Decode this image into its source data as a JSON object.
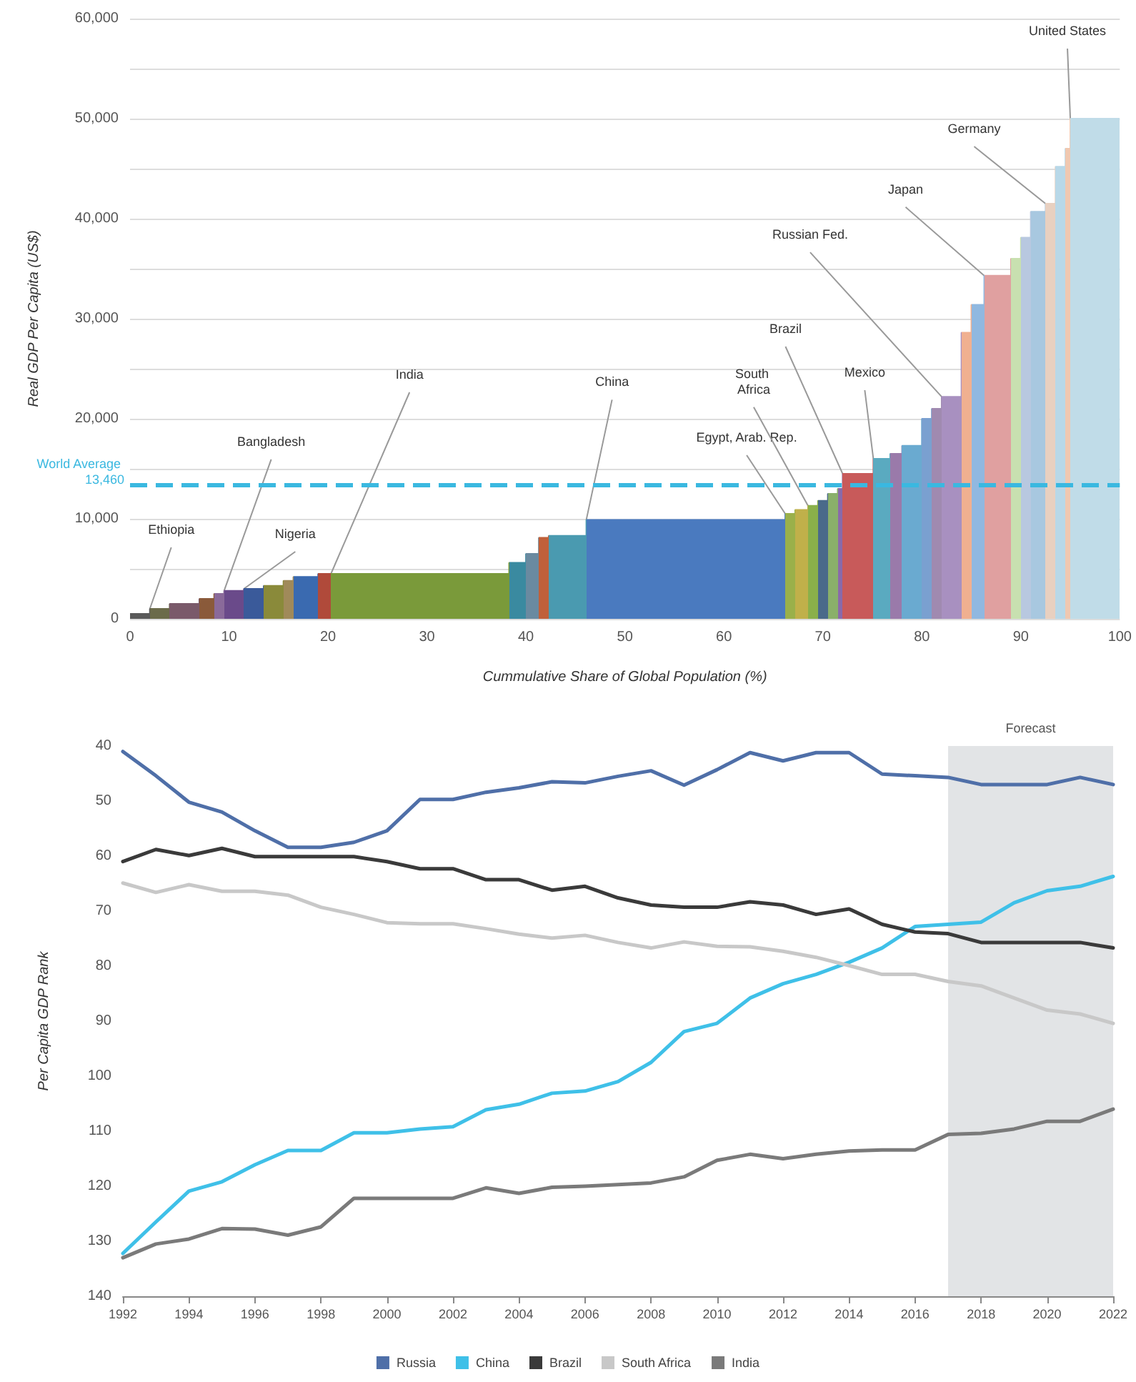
{
  "chart_data": [
    {
      "type": "area",
      "xlabel": "Cummulative Share of Global Population (%)",
      "ylabel": "Real GDP Per Capita (US$)",
      "x": [
        0,
        2,
        2,
        4,
        4,
        7,
        7,
        8.5,
        8.5,
        9.5,
        9.5,
        11.5,
        11.5,
        13.5,
        13.5,
        15.5,
        15.5,
        16.5,
        16.5,
        19,
        19,
        20.3,
        20.3,
        38.3,
        38.3,
        40,
        40,
        41.3,
        41.3,
        42.3,
        42.3,
        46.1,
        46.1,
        66.2,
        66.2,
        67.2,
        67.2,
        68.5,
        68.5,
        69.5,
        69.5,
        70.5,
        70.5,
        71.5,
        71.5,
        72,
        72,
        75.1,
        75.1,
        76.8,
        76.8,
        78,
        78,
        80,
        80,
        81,
        81,
        82,
        82,
        84,
        84,
        85,
        85,
        86.3,
        86.3,
        89,
        89,
        90,
        90,
        91,
        91,
        92.5,
        92.5,
        93.5,
        93.5,
        94.5,
        94.5,
        95,
        95,
        100
      ],
      "values": [
        500,
        500,
        1000,
        1000,
        1500,
        1500,
        2000,
        2000,
        2500,
        2500,
        2800,
        2800,
        3000,
        3000,
        3300,
        3300,
        3800,
        3800,
        4200,
        4200,
        4500,
        4500,
        4500,
        4500,
        5600,
        5600,
        6500,
        6500,
        8100,
        8100,
        8300,
        8300,
        9900,
        9900,
        10500,
        10500,
        10900,
        10900,
        11300,
        11300,
        11800,
        11800,
        12500,
        12500,
        13000,
        13000,
        14500,
        14500,
        16000,
        16000,
        16500,
        16500,
        17300,
        17300,
        20000,
        20000,
        21000,
        21000,
        22200,
        22200,
        28600,
        28600,
        31400,
        31400,
        34300,
        34300,
        36000,
        36000,
        38100,
        38100,
        40700,
        40700,
        41500,
        41500,
        45200,
        45200,
        47000,
        47000,
        50000,
        50000
      ],
      "colors": [
        "#5a5a5a",
        "#5a5a5a",
        "#6b6b4a",
        "#6b6b4a",
        "#7a5a6a",
        "#7a5a6a",
        "#8a5a3a",
        "#8a5a3a",
        "#8a6a9a",
        "#8a6a9a",
        "#6a4a8a",
        "#6a4a8a",
        "#3a5a9a",
        "#3a5a9a",
        "#8a8a3a",
        "#8a8a3a",
        "#a08a5a",
        "#a08a5a",
        "#3a6ab0",
        "#3a6ab0",
        "#b04a3a",
        "#b04a3a",
        "#7a9a3a",
        "#7a9a3a",
        "#3a8aa0",
        "#3a8aa0",
        "#6a8aa0",
        "#6a8aa0",
        "#c0603a",
        "#c0603a",
        "#4a9ab0",
        "#4a9ab0",
        "#4a7abf",
        "#4a7abf",
        "#9ab04a",
        "#9ab04a",
        "#c0b04a",
        "#c0b04a",
        "#8ab04a",
        "#8ab04a",
        "#4a6a8a",
        "#4a6a8a",
        "#8ab06a",
        "#8ab06a",
        "#8a6aaa",
        "#8a6aaa",
        "#c85a5a",
        "#c85a5a",
        "#5aaac0",
        "#5aaac0",
        "#9a7aaa",
        "#9a7aaa",
        "#6aaad0",
        "#6aaad0",
        "#7aa0d0",
        "#7aa0d0",
        "#a08ab0",
        "#a08ab0",
        "#a890c0",
        "#a890c0",
        "#f0b090",
        "#f0b090",
        "#90b8e0",
        "#90b8e0",
        "#e0a0a0",
        "#e0a0a0",
        "#c8e0b0",
        "#c8e0b0",
        "#b8c8e0",
        "#b8c8e0",
        "#a8c8e0",
        "#a8c8e0",
        "#e8d0c0",
        "#e8d0c0",
        "#b8d8e8",
        "#b8d8e8",
        "#f0c8b0",
        "#f0c8b0",
        "#c0dce8",
        "#c0dce8"
      ],
      "xlim": [
        0,
        100
      ],
      "xticks": [
        0,
        10,
        20,
        30,
        40,
        50,
        60,
        70,
        80,
        90,
        100
      ],
      "ylim": [
        0,
        60000
      ],
      "yticks": [
        0,
        {
          "value": 5000,
          "label": null
        },
        {
          "value": 10000,
          "label": "10,000"
        },
        {
          "value": 15000,
          "label": null
        },
        {
          "value": 20000,
          "label": "20,000"
        },
        {
          "value": 25000,
          "label": null
        },
        {
          "value": 30000,
          "label": "30,000"
        },
        {
          "value": 35000,
          "label": null
        },
        {
          "value": 40000,
          "label": "40,000"
        },
        {
          "value": 45000,
          "label": null
        },
        {
          "value": 50000,
          "label": "50,000"
        },
        {
          "value": 55000,
          "label": null
        },
        {
          "value": 60000,
          "label": "60,000"
        }
      ],
      "grid": "y",
      "ref_lines": [
        {
          "axis": "y",
          "value": 13460,
          "label": "World Average 13,460",
          "color": "#3ab8e0",
          "line_style": "dashed"
        }
      ],
      "annotations": [
        {
          "text": "Ethiopia",
          "x": 2,
          "y": 1000
        },
        {
          "text": "Bangladesh",
          "x": 9.5,
          "y": 2800
        },
        {
          "text": "Nigeria",
          "x": 11.5,
          "y": 3000
        },
        {
          "text": "India",
          "x": 20.3,
          "y": 4500
        },
        {
          "text": "China",
          "x": 46.1,
          "y": 9900
        },
        {
          "text": "Egypt, Arab. Rep.",
          "x": 66.2,
          "y": 10500
        },
        {
          "text": "South Africa",
          "x": 68.5,
          "y": 11300
        },
        {
          "text": "Brazil",
          "x": 72,
          "y": 14500
        },
        {
          "text": "Mexico",
          "x": 75.1,
          "y": 16000
        },
        {
          "text": "Russian Fed.",
          "x": 82,
          "y": 22200
        },
        {
          "text": "Japan",
          "x": 86.3,
          "y": 34300
        },
        {
          "text": "Germany",
          "x": 92.5,
          "y": 41500
        },
        {
          "text": "United States",
          "x": 95,
          "y": 50000
        }
      ]
    },
    {
      "type": "line",
      "ylabel": "Per Capita GDP Rank",
      "x": [
        1992,
        1993,
        1994,
        1995,
        1996,
        1997,
        1998,
        1999,
        2000,
        2001,
        2002,
        2003,
        2004,
        2005,
        2006,
        2007,
        2008,
        2009,
        2010,
        2011,
        2012,
        2013,
        2014,
        2015,
        2016,
        2017,
        2018,
        2019,
        2020,
        2021,
        2022
      ],
      "series": [
        {
          "name": "Russia",
          "color": "#4f6fa8",
          "values": [
            41,
            45.4,
            50.2,
            52,
            55.4,
            58.4,
            58.4,
            57.5,
            55.4,
            49.7,
            49.7,
            48.4,
            47.6,
            46.5,
            46.7,
            45.5,
            44.5,
            47.1,
            44.3,
            41.2,
            42.7,
            41.2,
            41.2,
            45.1,
            45.4,
            45.7,
            47,
            47,
            47,
            45.7,
            47
          ]
        },
        {
          "name": "China",
          "color": "#3fc0e8",
          "values": [
            132.2,
            126.5,
            120.9,
            119.2,
            116.1,
            113.5,
            113.5,
            110.3,
            110.3,
            109.6,
            109.2,
            106.1,
            105.1,
            103.1,
            102.7,
            101,
            97.5,
            91.9,
            90.4,
            85.8,
            83.2,
            81.5,
            79.3,
            76.7,
            72.8,
            72.4,
            72,
            68.5,
            66.3,
            65.5,
            63.7
          ]
        },
        {
          "name": "Brazil",
          "color": "#3a3a3a",
          "values": [
            61,
            58.8,
            59.9,
            58.6,
            60.1,
            60.1,
            60.1,
            60.1,
            61,
            62.3,
            62.3,
            64.3,
            64.3,
            66.2,
            65.5,
            67.6,
            68.9,
            69.3,
            69.3,
            68.3,
            68.9,
            70.6,
            69.6,
            72.4,
            73.8,
            74.1,
            75.7,
            75.7,
            75.7,
            75.7,
            76.7
          ]
        },
        {
          "name": "South Africa",
          "color": "#c8c8c8",
          "values": [
            64.9,
            66.6,
            65.2,
            66.4,
            66.4,
            67.1,
            69.3,
            70.6,
            72.1,
            72.3,
            72.3,
            73.2,
            74.2,
            74.9,
            74.4,
            75.7,
            76.7,
            75.6,
            76.4,
            76.5,
            77.3,
            78.4,
            79.9,
            81.5,
            81.5,
            82.8,
            83.6,
            85.8,
            88,
            88.7,
            90.4
          ]
        },
        {
          "name": "India",
          "color": "#7a7a7a",
          "values": [
            133,
            130.5,
            129.6,
            127.7,
            127.8,
            128.9,
            127.4,
            122.2,
            122.2,
            122.2,
            122.2,
            120.3,
            121.3,
            120.2,
            120,
            119.7,
            119.4,
            118.3,
            115.3,
            114.2,
            115,
            114.2,
            113.6,
            113.4,
            113.4,
            110.6,
            110.4,
            109.6,
            108.2,
            108.2,
            106
          ]
        }
      ],
      "xlim": [
        1992,
        2022
      ],
      "xticks": [
        1992,
        1994,
        1996,
        1998,
        2000,
        2002,
        2004,
        2006,
        2008,
        2010,
        2012,
        2014,
        2016,
        2018,
        2020,
        2022
      ],
      "ylim": [
        140,
        40
      ],
      "yticks": [
        40,
        50,
        60,
        70,
        80,
        90,
        100,
        110,
        120,
        130,
        140
      ],
      "bands": [
        {
          "axis": "x",
          "from": 2017,
          "to": 2022,
          "label": "Forecast",
          "color": "#e2e4e6"
        }
      ],
      "marker": "none",
      "legend": "bottom"
    }
  ]
}
